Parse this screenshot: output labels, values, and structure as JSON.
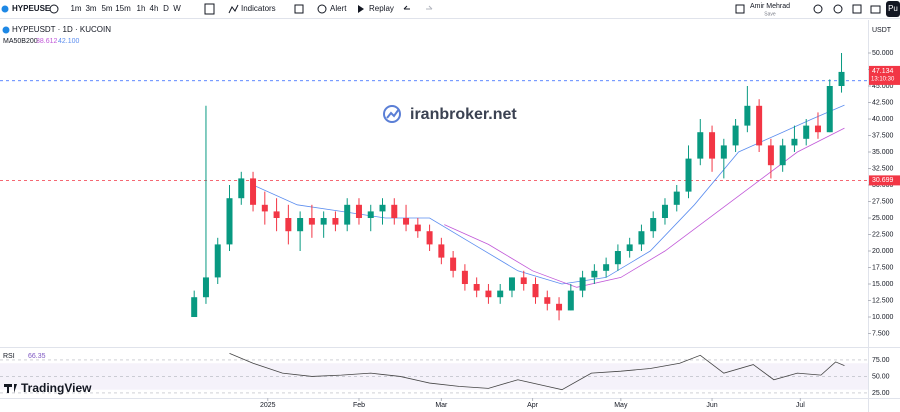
{
  "toolbar": {
    "symbol": "HYPEUSE",
    "intervals": [
      "1m",
      "3m",
      "5m",
      "15m",
      "1h",
      "4h",
      "D",
      "W"
    ],
    "indicators": "Indicators",
    "alert": "Alert",
    "replay": "Replay",
    "user": "Amir Mehrad",
    "save": "Save",
    "publish": "Pu"
  },
  "legend": {
    "title": "HYPEUSDT · 1D · KUCOIN",
    "ma_label": "MA50B200",
    "ma_values": [
      "38.612",
      "42.100"
    ]
  },
  "watermark": "iranbroker.net",
  "brand": "TradingView",
  "currency": "USDT",
  "chart_data": [
    {
      "type": "candlestick",
      "up_color": "#089981",
      "down_color": "#f23645",
      "x": [
        -25,
        -21,
        -17,
        -13,
        -9,
        -5,
        -1,
        3,
        7,
        11,
        15,
        19,
        23,
        27,
        31,
        35,
        39,
        43,
        47,
        51,
        55,
        59,
        63,
        67,
        71,
        75,
        79,
        83,
        87,
        91,
        95,
        99,
        103,
        107,
        111,
        115,
        119,
        123,
        127,
        131,
        135,
        139,
        143,
        147,
        151,
        155,
        159,
        163,
        167,
        171,
        175,
        179,
        183,
        187,
        191,
        195
      ],
      "open": [
        10,
        13,
        16,
        21,
        28,
        31,
        27,
        26,
        25,
        23,
        25,
        24,
        25,
        24,
        27,
        25,
        26,
        27,
        25,
        24,
        23,
        21,
        19,
        17,
        15,
        14,
        13,
        14,
        16,
        15,
        13,
        12,
        11,
        14,
        16,
        17,
        18,
        20,
        21,
        23,
        25,
        27,
        29,
        34,
        38,
        34,
        36,
        39,
        42,
        36,
        33,
        36,
        37,
        39,
        38,
        45
      ],
      "high": [
        14,
        42,
        22,
        30,
        32,
        32,
        29,
        28,
        27,
        26,
        27,
        26,
        26,
        28,
        28,
        27,
        28,
        28,
        27,
        25,
        24,
        22,
        20,
        18,
        16,
        15,
        15,
        16,
        17,
        16,
        14,
        13,
        15,
        17,
        18,
        19,
        21,
        22,
        24,
        26,
        28,
        30,
        36,
        40,
        39,
        37,
        40,
        45,
        43,
        37,
        37,
        39,
        40,
        41,
        46,
        50
      ],
      "low": [
        10,
        12,
        15,
        20,
        27,
        26,
        24,
        23,
        21,
        20,
        22,
        22,
        23,
        23,
        24,
        23,
        24,
        24,
        23,
        22,
        20,
        18,
        16,
        14,
        13,
        12,
        12,
        13,
        14,
        12,
        11,
        9.5,
        11,
        13,
        15,
        16,
        17,
        19,
        20,
        22,
        24,
        26,
        28,
        33,
        32,
        31,
        35,
        38,
        35,
        31,
        32,
        35,
        36,
        37,
        38,
        44
      ],
      "close": [
        13,
        16,
        21,
        28,
        31,
        27,
        26,
        25,
        23,
        25,
        24,
        25,
        24,
        27,
        25,
        26,
        27,
        25,
        24,
        23,
        21,
        19,
        17,
        15,
        14,
        13,
        14,
        16,
        15,
        13,
        12,
        11,
        14,
        16,
        17,
        18,
        20,
        21,
        23,
        25,
        27,
        29,
        34,
        38,
        34,
        36,
        39,
        42,
        36,
        33,
        36,
        37,
        39,
        38,
        45,
        47.134
      ],
      "lines": [
        {
          "color": "#5b8def",
          "x": [
            -5,
            10,
            25,
            40,
            55,
            70,
            85,
            100,
            115,
            130,
            145,
            160,
            175,
            185,
            196
          ],
          "values": [
            30,
            27,
            26,
            25,
            25,
            21,
            17,
            15,
            16,
            20,
            27,
            35,
            38,
            40,
            42.1
          ]
        },
        {
          "color": "#c158d8",
          "x": [
            60,
            75,
            90,
            105,
            120,
            135,
            150,
            165,
            180,
            196
          ],
          "values": [
            24,
            21,
            17,
            14.5,
            16,
            20,
            25,
            30,
            35,
            38.612
          ]
        }
      ],
      "price_lines": [
        {
          "value": 45.8,
          "color": "#2962ff"
        },
        {
          "value": 30.699,
          "label": "30.699",
          "color": "#f23645"
        }
      ],
      "last_price_label": "47.134",
      "countdown": "13:10:30",
      "xlim": [
        -91,
        204
      ],
      "ylim": [
        5.76,
        55
      ],
      "xticks": [
        {
          "value": 0,
          "label": "2025"
        },
        {
          "value": 31,
          "label": "Feb"
        },
        {
          "value": 59,
          "label": "Mar"
        },
        {
          "value": 90,
          "label": "Apr"
        },
        {
          "value": 120,
          "label": "May"
        },
        {
          "value": 151,
          "label": "Jun"
        },
        {
          "value": 181,
          "label": "Jul"
        }
      ],
      "yticks": [
        {
          "value": 7.5,
          "label": "7.500"
        },
        {
          "value": 10,
          "label": "10.000"
        },
        {
          "value": 12.5,
          "label": "12.500"
        },
        {
          "value": 15,
          "label": "15.000"
        },
        {
          "value": 17.5,
          "label": "17.500"
        },
        {
          "value": 20,
          "label": "20.000"
        },
        {
          "value": 22.5,
          "label": "22.500"
        },
        {
          "value": 25,
          "label": "25.000"
        },
        {
          "value": 27.5,
          "label": "27.500"
        },
        {
          "value": 30,
          "label": "30.000"
        },
        {
          "value": 32.5,
          "label": "32.500"
        },
        {
          "value": 35,
          "label": "35.000"
        },
        {
          "value": 37.5,
          "label": "37.500"
        },
        {
          "value": 40,
          "label": "40.000"
        },
        {
          "value": 42.5,
          "label": "42.500"
        },
        {
          "value": 45,
          "label": "45.000"
        },
        {
          "value": 47.5,
          "label": "47.500"
        },
        {
          "value": 50,
          "label": "50.000"
        }
      ]
    },
    {
      "type": "line",
      "title": "RSI",
      "last_label": "66.35",
      "color": "#444444",
      "band": [
        30,
        70
      ],
      "x": [
        -13,
        -5,
        5,
        15,
        25,
        35,
        45,
        55,
        65,
        75,
        85,
        95,
        100,
        110,
        120,
        130,
        140,
        147,
        155,
        165,
        172,
        180,
        188,
        193,
        196
      ],
      "values": [
        85,
        70,
        55,
        50,
        52,
        55,
        50,
        40,
        35,
        32,
        45,
        35,
        30,
        55,
        58,
        62,
        70,
        82,
        55,
        68,
        45,
        55,
        52,
        72,
        66.35
      ],
      "xlim": [
        -91,
        204
      ],
      "ylim": [
        17.4,
        87
      ],
      "yticks": [
        {
          "value": 25,
          "label": "25.00"
        },
        {
          "value": 50,
          "label": "50.00"
        },
        {
          "value": 75,
          "label": "75.00"
        }
      ]
    }
  ]
}
